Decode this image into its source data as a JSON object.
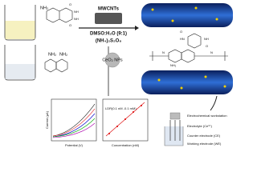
{
  "synthesis": {
    "reagent": "MWCNTs",
    "solvent": "DMSO:H₂O (9:1)",
    "oxidant": "(NH₄)₂S₂O₈",
    "nanoparticles": "CeO₂ NPs"
  },
  "monomer_1": {
    "labels": [
      "NH₂",
      "O",
      "NH",
      "NH",
      "O"
    ]
  },
  "monomer_2": {
    "labels": [
      "NH₂",
      "NH₂"
    ]
  },
  "polymer": {
    "labels": [
      "O",
      "HN",
      "NH",
      "O",
      "NH₂",
      "N",
      "N"
    ]
  },
  "charts": {
    "left": {
      "x_label": "Potential (V)",
      "y_label": "Current (μA)"
    },
    "right": {
      "x_label": "Concentration (nM)",
      "annotation": "LDR(0.1 nM -0.1 mM)"
    }
  },
  "cell": {
    "labels": [
      "Electrochemical workstation",
      "Electrolyte (Ce³⁺)",
      "Counter electrode (CE)",
      "Working electrode (WE)"
    ]
  }
}
